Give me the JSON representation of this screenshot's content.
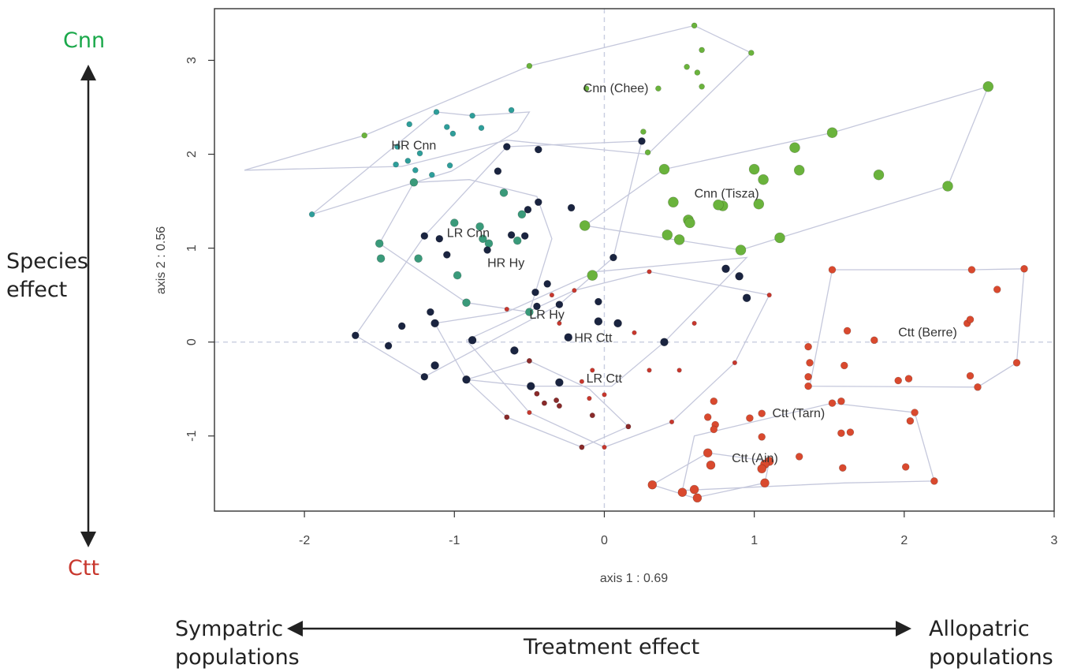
{
  "labels": {
    "top_species": "Cnn",
    "bottom_species": "Ctt",
    "vertical_arrow_label": [
      "Species",
      "effect"
    ],
    "left_population": [
      "Sympatric",
      "populations"
    ],
    "right_population": [
      "Allopatric",
      "populations"
    ],
    "horizontal_arrow_label": "Treatment effect"
  },
  "chart_data": {
    "type": "scatter",
    "xlabel": "axis 1 : 0.69",
    "ylabel": "axis 2 : 0.56",
    "xlim": [
      -2.6,
      3.0
    ],
    "ylim": [
      -1.8,
      3.55
    ],
    "xticks": [
      -2,
      -1,
      0,
      1,
      2,
      3
    ],
    "xtick_labels": [
      "-2",
      "-1",
      "0",
      "1",
      "2",
      "3"
    ],
    "yticks": [
      -1,
      0,
      1,
      2,
      3
    ],
    "ytick_labels": [
      "-1",
      "0",
      "1",
      "2",
      "3"
    ],
    "reference_lines": {
      "x": 0,
      "y": 0,
      "style": "dashed"
    },
    "colors": {
      "cnn_green": "#6ab33c",
      "ctt_red": "#d9492e",
      "dark_navy": "#1a2440",
      "teal": "#2e9e9a",
      "grey": "#9a9a8e",
      "dark_red": "#8a2a2a",
      "hull": "#c5c8dc",
      "ref_line": "#c8cde0"
    },
    "groups": [
      {
        "name": "Cnn (Chee)",
        "label_xy": [
          -0.14,
          2.66
        ],
        "color": "#6ab33c",
        "hull": [
          [
            -2.4,
            1.83
          ],
          [
            -1.6,
            2.2
          ],
          [
            -0.5,
            2.94
          ],
          [
            0.6,
            3.37
          ],
          [
            0.98,
            3.08
          ],
          [
            0.29,
            2.0
          ],
          [
            -0.65,
            2.15
          ],
          [
            -1.35,
            1.87
          ],
          [
            -2.4,
            1.83
          ]
        ],
        "points": [
          [
            -0.5,
            2.94
          ],
          [
            0.6,
            3.37
          ],
          [
            0.65,
            3.11
          ],
          [
            0.55,
            2.93
          ],
          [
            0.62,
            2.87
          ],
          [
            0.98,
            3.08
          ],
          [
            0.65,
            2.72
          ],
          [
            -0.12,
            2.7
          ],
          [
            0.36,
            2.7
          ],
          [
            0.26,
            2.24
          ],
          [
            0.29,
            2.02
          ],
          [
            -1.6,
            2.2
          ]
        ],
        "size": 3.5
      },
      {
        "name": "Cnn (Tisza)",
        "label_xy": [
          0.6,
          1.54
        ],
        "color": "#6ab33c",
        "hull": [
          [
            -0.13,
            1.24
          ],
          [
            0.4,
            1.84
          ],
          [
            1.52,
            2.23
          ],
          [
            2.56,
            2.72
          ],
          [
            2.29,
            1.66
          ],
          [
            1.17,
            1.11
          ],
          [
            0.91,
            0.98
          ],
          [
            -0.13,
            1.24
          ]
        ],
        "points": [
          [
            0.4,
            1.84
          ],
          [
            1.0,
            1.84
          ],
          [
            1.06,
            1.73
          ],
          [
            1.3,
            1.83
          ],
          [
            1.27,
            2.07
          ],
          [
            1.52,
            2.23
          ],
          [
            1.83,
            1.78
          ],
          [
            2.56,
            2.72
          ],
          [
            2.29,
            1.66
          ],
          [
            0.46,
            1.49
          ],
          [
            0.56,
            1.3
          ],
          [
            0.57,
            1.27
          ],
          [
            0.79,
            1.45
          ],
          [
            0.76,
            1.46
          ],
          [
            1.03,
            1.47
          ],
          [
            0.42,
            1.14
          ],
          [
            0.5,
            1.09
          ],
          [
            1.17,
            1.11
          ],
          [
            0.91,
            0.98
          ],
          [
            -0.13,
            1.24
          ],
          [
            -0.08,
            0.71
          ]
        ],
        "size": 6.5
      },
      {
        "name": "HR Cnn",
        "label_xy": [
          -1.42,
          2.05
        ],
        "color": "#2e9e9a",
        "hull": [
          [
            -1.95,
            1.36
          ],
          [
            -1.12,
            2.45
          ],
          [
            -0.88,
            2.41
          ],
          [
            -0.5,
            2.45
          ],
          [
            -0.58,
            2.25
          ],
          [
            -1.02,
            1.82
          ],
          [
            -1.95,
            1.36
          ]
        ],
        "points": [
          [
            -1.12,
            2.45
          ],
          [
            -1.3,
            2.32
          ],
          [
            -1.05,
            2.29
          ],
          [
            -1.01,
            2.22
          ],
          [
            -0.88,
            2.41
          ],
          [
            -0.82,
            2.28
          ],
          [
            -1.38,
            2.08
          ],
          [
            -1.31,
            1.93
          ],
          [
            -1.23,
            2.01
          ],
          [
            -1.03,
            1.88
          ],
          [
            -0.62,
            2.47
          ],
          [
            -1.39,
            1.89
          ],
          [
            -1.26,
            1.83
          ],
          [
            -1.15,
            1.78
          ],
          [
            -1.95,
            1.36
          ]
        ],
        "size": 3.5
      },
      {
        "name": "LR Cnn",
        "label_xy": [
          -1.05,
          1.12
        ],
        "color": "#3a9a7a",
        "hull": [
          [
            -1.5,
            1.05
          ],
          [
            -1.27,
            1.7
          ],
          [
            -0.9,
            1.73
          ],
          [
            -0.45,
            1.55
          ],
          [
            -0.35,
            1.1
          ],
          [
            -0.5,
            0.32
          ],
          [
            -0.92,
            0.42
          ],
          [
            -1.5,
            1.05
          ]
        ],
        "points": [
          [
            -1.5,
            1.05
          ],
          [
            -1.49,
            0.89
          ],
          [
            -1.27,
            1.7
          ],
          [
            -1.24,
            0.89
          ],
          [
            -1.0,
            1.27
          ],
          [
            -0.83,
            1.23
          ],
          [
            -0.67,
            1.59
          ],
          [
            -0.55,
            1.36
          ],
          [
            -0.77,
            1.05
          ],
          [
            -0.58,
            1.08
          ],
          [
            -0.92,
            0.42
          ],
          [
            -0.98,
            0.71
          ],
          [
            -0.81,
            1.1
          ],
          [
            -0.5,
            0.32
          ]
        ],
        "size": 5
      },
      {
        "name": "HR Hy",
        "label_xy": [
          -0.78,
          0.8
        ],
        "color": "#1a2440",
        "hull": [
          [
            -1.66,
            0.07
          ],
          [
            -1.2,
            1.13
          ],
          [
            -0.65,
            2.08
          ],
          [
            0.25,
            2.14
          ],
          [
            0.06,
            0.9
          ],
          [
            -0.3,
            0.4
          ],
          [
            -1.2,
            -0.37
          ],
          [
            -1.66,
            0.07
          ]
        ],
        "points": [
          [
            -1.2,
            1.13
          ],
          [
            -1.1,
            1.1
          ],
          [
            -1.05,
            0.93
          ],
          [
            -0.65,
            2.08
          ],
          [
            -0.44,
            2.05
          ],
          [
            -0.71,
            1.82
          ],
          [
            -0.44,
            1.49
          ],
          [
            -0.51,
            1.41
          ],
          [
            -0.22,
            1.43
          ],
          [
            -0.62,
            1.14
          ],
          [
            -0.53,
            1.13
          ],
          [
            -0.78,
            0.98
          ],
          [
            0.06,
            0.9
          ],
          [
            -0.46,
            0.53
          ],
          [
            -0.38,
            0.62
          ],
          [
            0.25,
            2.14
          ],
          [
            -1.66,
            0.07
          ],
          [
            -1.44,
            -0.04
          ],
          [
            -1.35,
            0.17
          ],
          [
            -1.16,
            0.32
          ],
          [
            -1.2,
            -0.37
          ],
          [
            -0.45,
            0.38
          ],
          [
            -0.3,
            0.4
          ],
          [
            -0.04,
            0.43
          ]
        ],
        "size": 4.5
      },
      {
        "name": "LR Hy",
        "label_xy": [
          -0.5,
          0.25
        ],
        "color": "#1a2440",
        "hull": [
          [
            -1.13,
            0.2
          ],
          [
            -0.92,
            -0.4
          ],
          [
            -0.5,
            -0.47
          ],
          [
            0.05,
            -0.47
          ],
          [
            0.4,
            0.0
          ],
          [
            0.95,
            0.9
          ],
          [
            -0.05,
            0.75
          ],
          [
            -0.65,
            0.32
          ],
          [
            -1.13,
            0.2
          ]
        ],
        "points": [
          [
            -1.13,
            0.2
          ],
          [
            -1.13,
            -0.25
          ],
          [
            -0.92,
            -0.4
          ],
          [
            -0.88,
            0.02
          ],
          [
            -0.6,
            -0.09
          ],
          [
            -0.49,
            -0.47
          ],
          [
            -0.3,
            -0.43
          ],
          [
            -0.24,
            0.05
          ],
          [
            0.4,
            0.0
          ],
          [
            -0.04,
            0.22
          ],
          [
            0.09,
            0.2
          ],
          [
            0.95,
            0.47
          ],
          [
            0.9,
            0.7
          ],
          [
            0.81,
            0.78
          ]
        ],
        "size": 5
      },
      {
        "name": "HR Ctt",
        "label_xy": [
          -0.2,
          0.0
        ],
        "color": "#c8372d",
        "hull": [
          [
            -0.92,
            0.02
          ],
          [
            -0.5,
            -0.75
          ],
          [
            0.0,
            -1.12
          ],
          [
            0.45,
            -0.85
          ],
          [
            0.87,
            -0.22
          ],
          [
            1.1,
            0.5
          ],
          [
            0.3,
            0.75
          ],
          [
            -0.2,
            0.55
          ],
          [
            -0.92,
            0.02
          ]
        ],
        "points": [
          [
            -0.65,
            0.35
          ],
          [
            -0.35,
            0.5
          ],
          [
            -0.2,
            0.55
          ],
          [
            0.3,
            0.75
          ],
          [
            1.1,
            0.5
          ],
          [
            -0.3,
            0.2
          ],
          [
            0.2,
            0.1
          ],
          [
            0.6,
            0.2
          ],
          [
            0.87,
            -0.22
          ],
          [
            0.5,
            -0.3
          ],
          [
            0.3,
            -0.3
          ],
          [
            -0.1,
            -0.6
          ],
          [
            0.0,
            -0.56
          ],
          [
            0.45,
            -0.85
          ],
          [
            0.0,
            -1.12
          ],
          [
            -0.5,
            -0.75
          ],
          [
            -0.15,
            -0.42
          ],
          [
            -0.08,
            -0.3
          ]
        ],
        "size": 2.8
      },
      {
        "name": "LR Ctt",
        "label_xy": [
          -0.12,
          -0.43
        ],
        "color": "#8a2a2a",
        "hull": [
          [
            -0.92,
            -0.4
          ],
          [
            -0.65,
            -0.8
          ],
          [
            -0.15,
            -1.12
          ],
          [
            0.16,
            -0.9
          ],
          [
            -0.1,
            -0.5
          ],
          [
            -0.5,
            -0.2
          ],
          [
            -0.92,
            -0.4
          ]
        ],
        "points": [
          [
            -0.65,
            -0.8
          ],
          [
            -0.4,
            -0.65
          ],
          [
            -0.3,
            -0.68
          ],
          [
            -0.15,
            -1.12
          ],
          [
            -0.08,
            -0.78
          ],
          [
            0.16,
            -0.9
          ],
          [
            -0.45,
            -0.55
          ],
          [
            -0.32,
            -0.62
          ],
          [
            -0.5,
            -0.2
          ]
        ],
        "size": 3.2
      },
      {
        "name": "Ctt (Berre)",
        "label_xy": [
          1.96,
          0.06
        ],
        "color": "#d9492e",
        "hull": [
          [
            1.37,
            -0.47
          ],
          [
            1.52,
            0.77
          ],
          [
            2.45,
            0.77
          ],
          [
            2.8,
            0.78
          ],
          [
            2.75,
            -0.22
          ],
          [
            2.49,
            -0.48
          ],
          [
            1.37,
            -0.47
          ]
        ],
        "points": [
          [
            1.52,
            0.77
          ],
          [
            2.45,
            0.77
          ],
          [
            2.8,
            0.78
          ],
          [
            2.62,
            0.56
          ],
          [
            2.42,
            0.2
          ],
          [
            2.44,
            0.24
          ],
          [
            1.8,
            0.02
          ],
          [
            1.62,
            0.12
          ],
          [
            1.37,
            -0.22
          ],
          [
            1.36,
            -0.37
          ],
          [
            1.36,
            -0.47
          ],
          [
            1.6,
            -0.25
          ],
          [
            1.96,
            -0.41
          ],
          [
            2.03,
            -0.39
          ],
          [
            2.44,
            -0.36
          ],
          [
            2.49,
            -0.48
          ],
          [
            2.75,
            -0.22
          ],
          [
            1.36,
            -0.05
          ]
        ],
        "size": 4.5
      },
      {
        "name": "Ctt (Tarn)",
        "label_xy": [
          1.12,
          -0.8
        ],
        "color": "#d9492e",
        "hull": [
          [
            0.52,
            -1.58
          ],
          [
            0.6,
            -1.0
          ],
          [
            1.52,
            -0.65
          ],
          [
            2.07,
            -0.75
          ],
          [
            2.2,
            -1.48
          ],
          [
            1.6,
            -1.5
          ],
          [
            0.52,
            -1.58
          ]
        ],
        "points": [
          [
            0.73,
            -0.63
          ],
          [
            0.69,
            -0.8
          ],
          [
            0.74,
            -0.88
          ],
          [
            0.73,
            -0.93
          ],
          [
            1.05,
            -0.76
          ],
          [
            1.52,
            -0.65
          ],
          [
            1.58,
            -0.63
          ],
          [
            1.58,
            -0.97
          ],
          [
            1.64,
            -0.96
          ],
          [
            2.07,
            -0.75
          ],
          [
            2.04,
            -0.84
          ],
          [
            1.05,
            -1.01
          ],
          [
            1.3,
            -1.22
          ],
          [
            1.59,
            -1.34
          ],
          [
            2.01,
            -1.33
          ],
          [
            2.2,
            -1.48
          ],
          [
            0.97,
            -0.81
          ]
        ],
        "size": 4.5
      },
      {
        "name": "Ctt (Ain)",
        "label_xy": [
          0.85,
          -1.28
        ],
        "color": "#d9492e",
        "hull": [
          [
            0.32,
            -1.52
          ],
          [
            0.69,
            -1.18
          ],
          [
            1.1,
            -1.27
          ],
          [
            1.07,
            -1.5
          ],
          [
            0.6,
            -1.66
          ],
          [
            0.32,
            -1.52
          ]
        ],
        "points": [
          [
            0.32,
            -1.52
          ],
          [
            0.52,
            -1.6
          ],
          [
            0.6,
            -1.57
          ],
          [
            0.62,
            -1.66
          ],
          [
            0.69,
            -1.18
          ],
          [
            0.71,
            -1.31
          ],
          [
            1.1,
            -1.27
          ],
          [
            1.07,
            -1.3
          ],
          [
            1.05,
            -1.35
          ],
          [
            1.07,
            -1.5
          ]
        ],
        "size": 5.5
      }
    ]
  }
}
